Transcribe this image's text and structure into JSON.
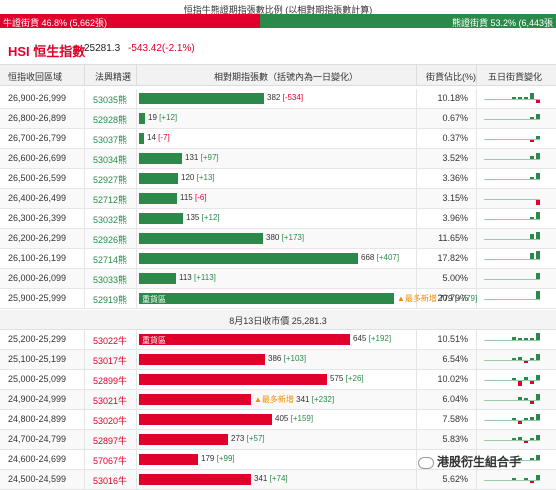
{
  "title": "恒指牛熊證期指張數比例 (以相對期指張數計算)",
  "ratio": {
    "bull_label": "牛證街貨 46.8% (5,662張)",
    "bear_label": "熊證街貨 53.2% (6,443張",
    "bull_pct": 46.8
  },
  "index": {
    "name": "HSI 恒生指數",
    "value": "25281.3",
    "change": "-543.42(-2.1%)"
  },
  "headers": {
    "range": "恒指收回區域",
    "code": "法興精選",
    "count": "相對期指張數（括號內為一日變化）",
    "pct": "街貨佔比(%)",
    "trend": "五日街貨變化"
  },
  "mid_label": "8月13日收市價 25,281.3",
  "bear_rows": [
    {
      "range": "26,900-26,999",
      "code": "53035熊",
      "count": "382",
      "delta": "[-534]",
      "pct": "10.18%",
      "bar": 382,
      "spark": [
        1,
        1,
        1,
        4,
        -2
      ]
    },
    {
      "range": "26,800-26,899",
      "code": "52928熊",
      "count": "19",
      "delta": "[+12]",
      "pct": "0.67%",
      "bar": 19,
      "spark": [
        0,
        0,
        0,
        1,
        3
      ]
    },
    {
      "range": "26,700-26,799",
      "code": "53037熊",
      "count": "14",
      "delta": "[-7]",
      "pct": "0.37%",
      "bar": 14,
      "spark": [
        0,
        0,
        0,
        -1,
        2
      ]
    },
    {
      "range": "26,600-26,699",
      "code": "53034熊",
      "count": "131",
      "delta": "[+97]",
      "pct": "3.52%",
      "bar": 131,
      "spark": [
        0,
        0,
        0,
        2,
        4
      ]
    },
    {
      "range": "26,500-26,599",
      "code": "52927熊",
      "count": "120",
      "delta": "[+13]",
      "pct": "3.36%",
      "bar": 120,
      "spark": [
        0,
        0,
        0,
        1,
        4
      ]
    },
    {
      "range": "26,400-26,499",
      "code": "52712熊",
      "count": "115",
      "delta": "[-6]",
      "pct": "3.15%",
      "bar": 115,
      "spark": [
        0,
        0,
        0,
        0,
        -3
      ]
    },
    {
      "range": "26,300-26,399",
      "code": "53032熊",
      "count": "135",
      "delta": "[+12]",
      "pct": "3.96%",
      "bar": 135,
      "spark": [
        0,
        0,
        0,
        1,
        5
      ]
    },
    {
      "range": "26,200-26,299",
      "code": "52926熊",
      "count": "380",
      "delta": "[+173]",
      "pct": "11.65%",
      "bar": 380,
      "spark": [
        0,
        0,
        0,
        3,
        5
      ]
    },
    {
      "range": "26,100-26,199",
      "code": "52714熊",
      "count": "668",
      "delta": "[+407]",
      "pct": "17.82%",
      "bar": 668,
      "spark": [
        0,
        0,
        0,
        4,
        6
      ]
    },
    {
      "range": "26,000-26,099",
      "code": "53033熊",
      "count": "113",
      "delta": "[+113]",
      "pct": "5.00%",
      "bar": 113,
      "spark": [
        0,
        0,
        0,
        0,
        4
      ]
    },
    {
      "range": "25,900-25,999",
      "code": "52919熊",
      "count": "779",
      "delta": "[+779]",
      "pct": "20.79%",
      "bar": 779,
      "tag": "重貨區",
      "warn": "▲最多新增",
      "spark": [
        0,
        0,
        0,
        0,
        7
      ]
    }
  ],
  "bull_rows": [
    {
      "range": "25,200-25,299",
      "code": "53022牛",
      "count": "645",
      "delta": "[+192]",
      "pct": "10.51%",
      "bar": 645,
      "tag": "重貨區",
      "spark": [
        2,
        1,
        1,
        1,
        5
      ]
    },
    {
      "range": "25,100-25,199",
      "code": "53017牛",
      "count": "386",
      "delta": "[+103]",
      "pct": "6.54%",
      "bar": 386,
      "spark": [
        1,
        2,
        -1,
        1,
        4
      ]
    },
    {
      "range": "25,000-25,099",
      "code": "52899牛",
      "count": "575",
      "delta": "[+26]",
      "pct": "10.02%",
      "bar": 575,
      "spark": [
        1,
        -3,
        2,
        -2,
        3
      ]
    },
    {
      "range": "24,900-24,999",
      "code": "53021牛",
      "count": "341",
      "delta": "[+232]",
      "pct": "6.04%",
      "bar": 341,
      "warn": "▲最多新增",
      "spark": [
        0,
        2,
        1,
        -2,
        4
      ]
    },
    {
      "range": "24,800-24,899",
      "code": "53020牛",
      "count": "405",
      "delta": "[+159]",
      "pct": "7.58%",
      "bar": 405,
      "spark": [
        1,
        -2,
        1,
        2,
        4
      ]
    },
    {
      "range": "24,700-24,799",
      "code": "52897牛",
      "count": "273",
      "delta": "[+57]",
      "pct": "5.83%",
      "bar": 273,
      "spark": [
        1,
        2,
        -1,
        1,
        3
      ]
    },
    {
      "range": "24,600-24,699",
      "code": "57067牛",
      "count": "179",
      "delta": "[+99]",
      "pct": "2.9",
      "bar": 179,
      "spark": [
        0,
        1,
        0,
        1,
        3
      ]
    },
    {
      "range": "24,500-24,599",
      "code": "53016牛",
      "count": "341",
      "delta": "[+74]",
      "pct": "5.62%",
      "bar": 341,
      "spark": [
        1,
        0,
        1,
        -1,
        3
      ]
    }
  ],
  "watermark": "港股衍生組合手",
  "colors": {
    "bull": "#e0002b",
    "bear": "#2b8a4a",
    "warn": "#f08c00"
  }
}
